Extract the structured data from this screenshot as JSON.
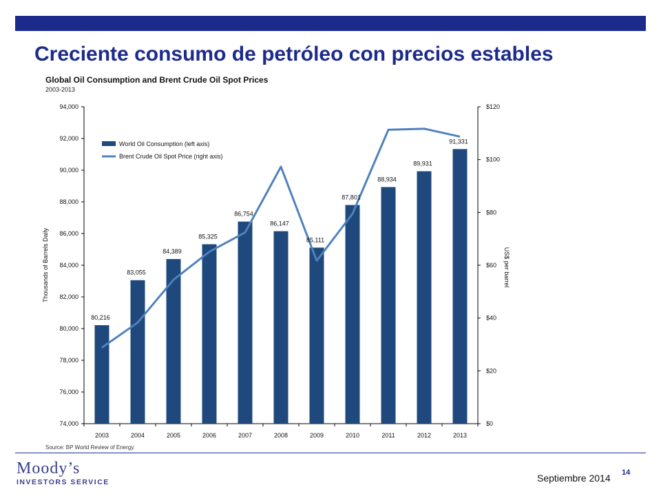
{
  "slide": {
    "title": "Creciente consumo de petróleo con precios estables",
    "date": "Septiembre 2014",
    "page_number": "14",
    "logo": {
      "name": "Moody’s",
      "sub": "INVESTORS SERVICE"
    },
    "source": "Source: BP World Review of Energy.",
    "colors": {
      "brand": "#1c2a8c",
      "bar": "#1f497d",
      "line": "#4f81bd"
    }
  },
  "chart_data": {
    "type": "bar",
    "title": "Global Oil Consumption and Brent Crude Oil Spot Prices",
    "subtitle": "2003-2013",
    "categories": [
      "2003",
      "2004",
      "2005",
      "2006",
      "2007",
      "2008",
      "2009",
      "2010",
      "2011",
      "2012",
      "2013"
    ],
    "series": [
      {
        "name": "World Oil Consumption (left axis)",
        "type": "bar",
        "axis": "left",
        "values": [
          80216,
          83055,
          84389,
          85325,
          86754,
          86147,
          85111,
          87801,
          88934,
          89931,
          91331
        ],
        "labels": [
          "80,216",
          "83,055",
          "84,389",
          "85,325",
          "86,754",
          "86,147",
          "85,111",
          "87,801",
          "88,934",
          "89,931",
          "91,331"
        ]
      },
      {
        "name": "Brent Crude Oil Spot Price (right axis)",
        "type": "line",
        "axis": "right",
        "values": [
          28.8,
          38.3,
          54.5,
          65.1,
          72.4,
          97.3,
          61.7,
          79.5,
          111.3,
          111.7,
          108.7
        ]
      }
    ],
    "ylabel": "Thousands of Barrels Daily",
    "y2label": "US$ per barrel",
    "ylim": [
      74000,
      94000
    ],
    "y2lim": [
      0,
      120
    ],
    "yticks": [
      "74,000",
      "76,000",
      "78,000",
      "80,000",
      "82,000",
      "84,000",
      "86,000",
      "88,000",
      "90,000",
      "92,000",
      "94,000"
    ],
    "y2ticks": [
      "$0",
      "$20",
      "$40",
      "$60",
      "$80",
      "$100",
      "$120"
    ],
    "grid": false,
    "legend": "top-left"
  }
}
